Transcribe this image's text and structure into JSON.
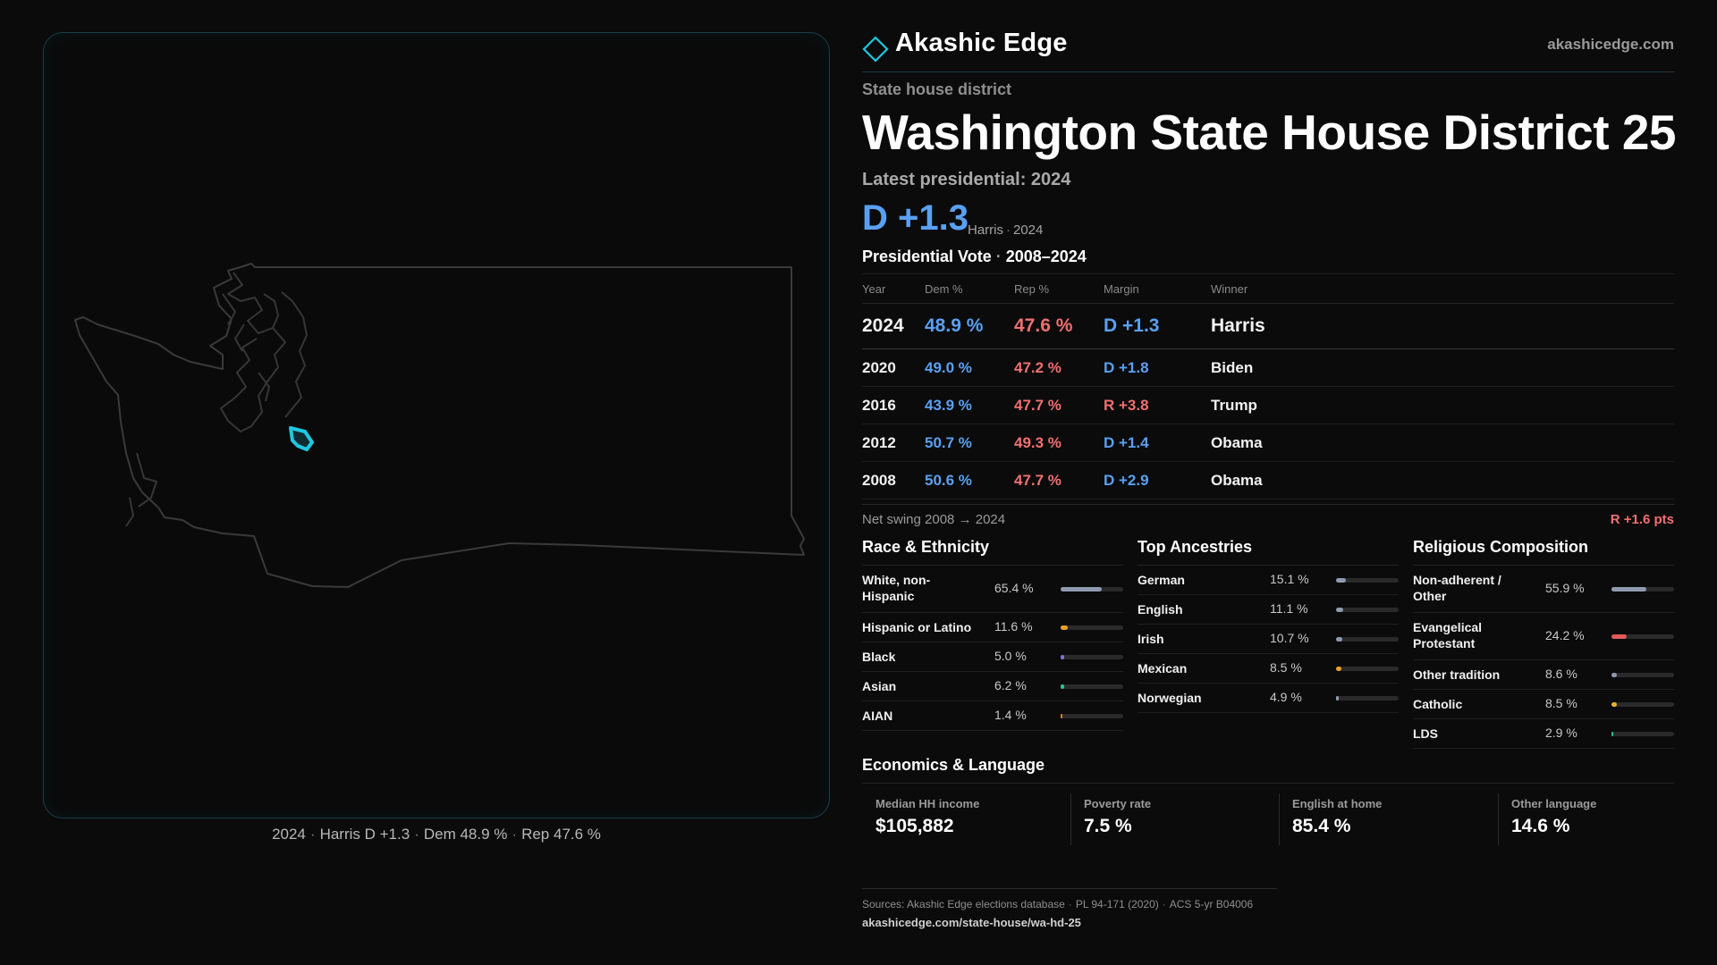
{
  "brand": {
    "name": "Akashic Edge",
    "url": "akashicedge.com"
  },
  "page": {
    "kicker": "State house district",
    "title": "Washington State House District 25",
    "latest": "Latest presidential: 2024",
    "headline_margin": "D +1.3",
    "headline_sub": [
      "Harris",
      "2024"
    ]
  },
  "map": {
    "caption": [
      "2024",
      "Harris D +1.3",
      "Dem 48.9 %",
      "Rep 47.6 %"
    ],
    "highlight_color": "#1fc7e0"
  },
  "presidential": {
    "title": [
      "Presidential Vote",
      "2008–2024"
    ],
    "headers": {
      "year": "Year",
      "dem": "Dem %",
      "rep": "Rep %",
      "margin": "Margin",
      "winner": "Winner"
    },
    "rows": [
      {
        "year": "2024",
        "dem": "48.9 %",
        "rep": "47.6 %",
        "margin": "D +1.3",
        "party": "D",
        "winner": "Harris"
      },
      {
        "year": "2020",
        "dem": "49.0 %",
        "rep": "47.2 %",
        "margin": "D +1.8",
        "party": "D",
        "winner": "Biden"
      },
      {
        "year": "2016",
        "dem": "43.9 %",
        "rep": "47.7 %",
        "margin": "R +3.8",
        "party": "R",
        "winner": "Trump"
      },
      {
        "year": "2012",
        "dem": "50.7 %",
        "rep": "49.3 %",
        "margin": "D +1.4",
        "party": "D",
        "winner": "Obama"
      },
      {
        "year": "2008",
        "dem": "50.6 %",
        "rep": "47.7 %",
        "margin": "D +2.9",
        "party": "D",
        "winner": "Obama"
      }
    ],
    "swing_label": "Net swing 2008 → 2024",
    "swing_value": "R +1.6 pts"
  },
  "race": {
    "title": "Race & Ethnicity",
    "rows": [
      {
        "label": "White, non-Hispanic",
        "pct": "65.4 %",
        "value": 65.4,
        "color": "#8e9aae"
      },
      {
        "label": "Hispanic or Latino",
        "pct": "11.6 %",
        "value": 11.6,
        "color": "#e8a02a"
      },
      {
        "label": "Black",
        "pct": "5.0 %",
        "value": 5.0,
        "color": "#8a6ee0"
      },
      {
        "label": "Asian",
        "pct": "6.2 %",
        "value": 6.2,
        "color": "#2fc48a"
      },
      {
        "label": "AIAN",
        "pct": "1.4 %",
        "value": 1.4,
        "color": "#e07a3a"
      }
    ]
  },
  "ancestry": {
    "title": "Top Ancestries",
    "rows": [
      {
        "label": "German",
        "pct": "15.1 %",
        "value": 15.1,
        "color": "#8e9aae"
      },
      {
        "label": "English",
        "pct": "11.1 %",
        "value": 11.1,
        "color": "#8e9aae"
      },
      {
        "label": "Irish",
        "pct": "10.7 %",
        "value": 10.7,
        "color": "#8e9aae"
      },
      {
        "label": "Mexican",
        "pct": "8.5 %",
        "value": 8.5,
        "color": "#e8a02a"
      },
      {
        "label": "Norwegian",
        "pct": "4.9 %",
        "value": 4.9,
        "color": "#8e9aae"
      }
    ]
  },
  "religion": {
    "title": "Religious Composition",
    "rows": [
      {
        "label": "Non-adherent / Other",
        "pct": "55.9 %",
        "value": 55.9,
        "color": "#8e9aae"
      },
      {
        "label": "Evangelical Protestant",
        "pct": "24.2 %",
        "value": 24.2,
        "color": "#e05a5a"
      },
      {
        "label": "Other tradition",
        "pct": "8.6 %",
        "value": 8.6,
        "color": "#8e9aae"
      },
      {
        "label": "Catholic",
        "pct": "8.5 %",
        "value": 8.5,
        "color": "#e8b42a"
      },
      {
        "label": "LDS",
        "pct": "2.9 %",
        "value": 2.9,
        "color": "#2fc48a"
      }
    ]
  },
  "economics": {
    "title": "Economics & Language",
    "cells": [
      {
        "label": "Median HH income",
        "value": "$105,882"
      },
      {
        "label": "Poverty rate",
        "value": "7.5 %"
      },
      {
        "label": "English at home",
        "value": "85.4 %"
      },
      {
        "label": "Other language",
        "value": "14.6 %"
      }
    ]
  },
  "sources": {
    "items": [
      "Sources: Akashic Edge elections database",
      "PL 94-171 (2020)",
      "ACS 5-yr B04006"
    ],
    "link": "akashicedge.com/state-house/wa-hd-25"
  }
}
